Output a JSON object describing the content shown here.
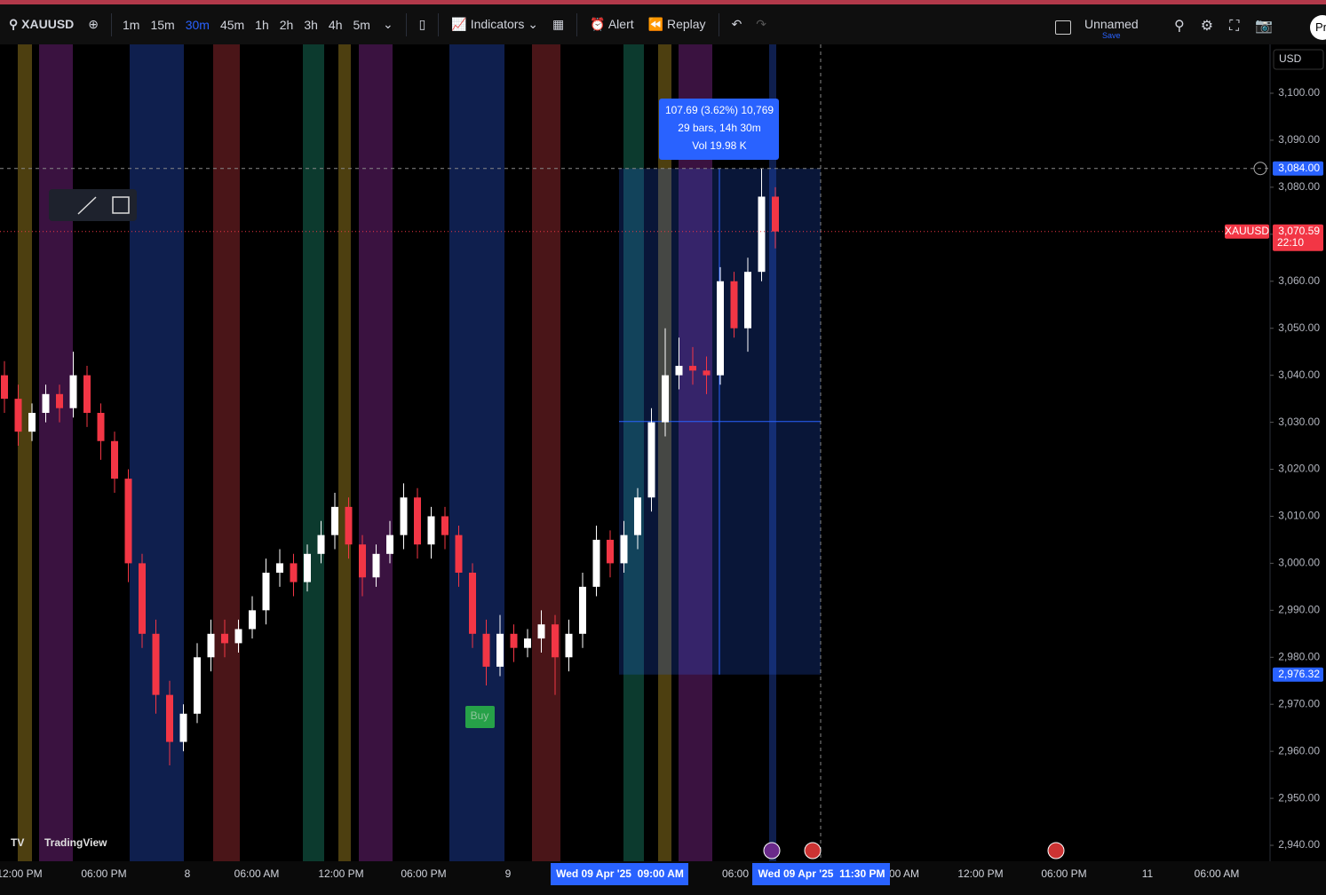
{
  "toolbar": {
    "symbol": "XAUUSD",
    "intervals": [
      "1m",
      "15m",
      "30m",
      "45m",
      "1h",
      "2h",
      "3h",
      "4h",
      "5m"
    ],
    "indicators": "Indicators",
    "alert": "Alert",
    "replay": "Replay",
    "layout_name": "Unnamed",
    "save": "Save",
    "profile": "Pr"
  },
  "chart": {
    "type": "candlestick",
    "currency": "USD",
    "ylim": [
      2930,
      3110
    ],
    "yticks": [
      {
        "value": 3100,
        "label": "3,100.00"
      },
      {
        "value": 3090,
        "label": "3,090.00"
      },
      {
        "value": 3080,
        "label": "3,080.00"
      },
      {
        "value": 3070,
        "label": "3,070.00"
      },
      {
        "value": 3060,
        "label": "3,060.00"
      },
      {
        "value": 3050,
        "label": "3,050.00"
      },
      {
        "value": 3040,
        "label": "3,040.00"
      },
      {
        "value": 3030,
        "label": "3,030.00"
      },
      {
        "value": 3020,
        "label": "3,020.00"
      },
      {
        "value": 3010,
        "label": "3,010.00"
      },
      {
        "value": 3000,
        "label": "3,000.00"
      },
      {
        "value": 2990,
        "label": "2,990.00"
      },
      {
        "value": 2980,
        "label": "2,980.00"
      },
      {
        "value": 2970,
        "label": "2,970.00"
      },
      {
        "value": 2960,
        "label": "2,960.00"
      },
      {
        "value": 2950,
        "label": "2,950.00"
      },
      {
        "value": 2940,
        "label": "2,940.00"
      }
    ],
    "time_labels": [
      "12:00 PM",
      "06:00 PM",
      "8",
      "06:00 AM",
      "12:00 PM",
      "06:00 PM",
      "9",
      "06:00",
      "00 AM",
      "12:00 PM",
      "06:00 PM",
      "11",
      "06:00 AM"
    ],
    "time_highlights": [
      "Wed 09 Apr '25  09:00 AM",
      "Wed 09 Apr '25  11:30 PM"
    ],
    "candles": {
      "open": [
        3040,
        3035,
        3028,
        3032,
        3036,
        3033,
        3040,
        3032,
        3026,
        3018,
        3000,
        2985,
        2972,
        2962,
        2968,
        2980,
        2985,
        2983,
        2986,
        2990,
        2998,
        3000,
        2996,
        3002,
        3006,
        3012,
        3004,
        2997,
        3002,
        3006,
        3014,
        3004,
        3010,
        3006,
        2998,
        2985,
        2978,
        2985,
        2982,
        2984,
        2987,
        2980,
        2985,
        2995,
        3005,
        3000,
        3006,
        3014,
        3030,
        3040,
        3042,
        3041,
        3040,
        3060,
        3050,
        3062,
        3078
      ],
      "high": [
        3043,
        3038,
        3034,
        3038,
        3038,
        3045,
        3042,
        3034,
        3028,
        3020,
        3002,
        2988,
        2975,
        2970,
        2983,
        2988,
        2988,
        2988,
        2993,
        3001,
        3003,
        3002,
        3004,
        3009,
        3015,
        3014,
        3006,
        3004,
        3009,
        3017,
        3016,
        3012,
        3012,
        3008,
        3000,
        2988,
        2989,
        2987,
        2986,
        2990,
        2989,
        2988,
        2998,
        3008,
        3007,
        3009,
        3016,
        3033,
        3050,
        3048,
        3046,
        3044,
        3063,
        3062,
        3065,
        3084,
        3080
      ],
      "low": [
        3032,
        3025,
        3026,
        3030,
        3030,
        3031,
        3029,
        3022,
        3015,
        2996,
        2982,
        2968,
        2957,
        2960,
        2966,
        2977,
        2980,
        2981,
        2984,
        2987,
        2995,
        2993,
        2994,
        3000,
        3003,
        3001,
        2993,
        2995,
        3000,
        3003,
        3001,
        3001,
        3003,
        2995,
        2982,
        2974,
        2976,
        2979,
        2980,
        2981,
        2972,
        2977,
        2982,
        2993,
        2997,
        2998,
        3003,
        3011,
        3027,
        3037,
        3038,
        3036,
        3038,
        3048,
        3045,
        3060,
        3067
      ],
      "close": [
        3035,
        3028,
        3032,
        3036,
        3033,
        3040,
        3032,
        3026,
        3018,
        3000,
        2985,
        2972,
        2962,
        2968,
        2980,
        2985,
        2983,
        2986,
        2990,
        2998,
        3000,
        2996,
        3002,
        3006,
        3012,
        3004,
        2997,
        3002,
        3006,
        3014,
        3004,
        3010,
        3006,
        2998,
        2985,
        2978,
        2985,
        2982,
        2984,
        2987,
        2980,
        2985,
        2995,
        3005,
        3000,
        3006,
        3014,
        3030,
        3040,
        3042,
        3041,
        3040,
        3060,
        3050,
        3062,
        3078,
        3070.59
      ]
    },
    "cursor_price": {
      "value": 3084,
      "label": "3,084.00"
    },
    "last_price": {
      "value": 3070.59,
      "label": "3,070.59"
    },
    "symbol_tag": "XAUUSD",
    "countdown": "22:10",
    "measure_low": {
      "value": 2976.32,
      "label": "2,976.32"
    },
    "measure_lines": [
      "107.69 (3.62%) 10,769",
      "29 bars, 14h 30m",
      "Vol 19.98 K"
    ],
    "signal": "Buy",
    "watermark": "TradingView"
  }
}
